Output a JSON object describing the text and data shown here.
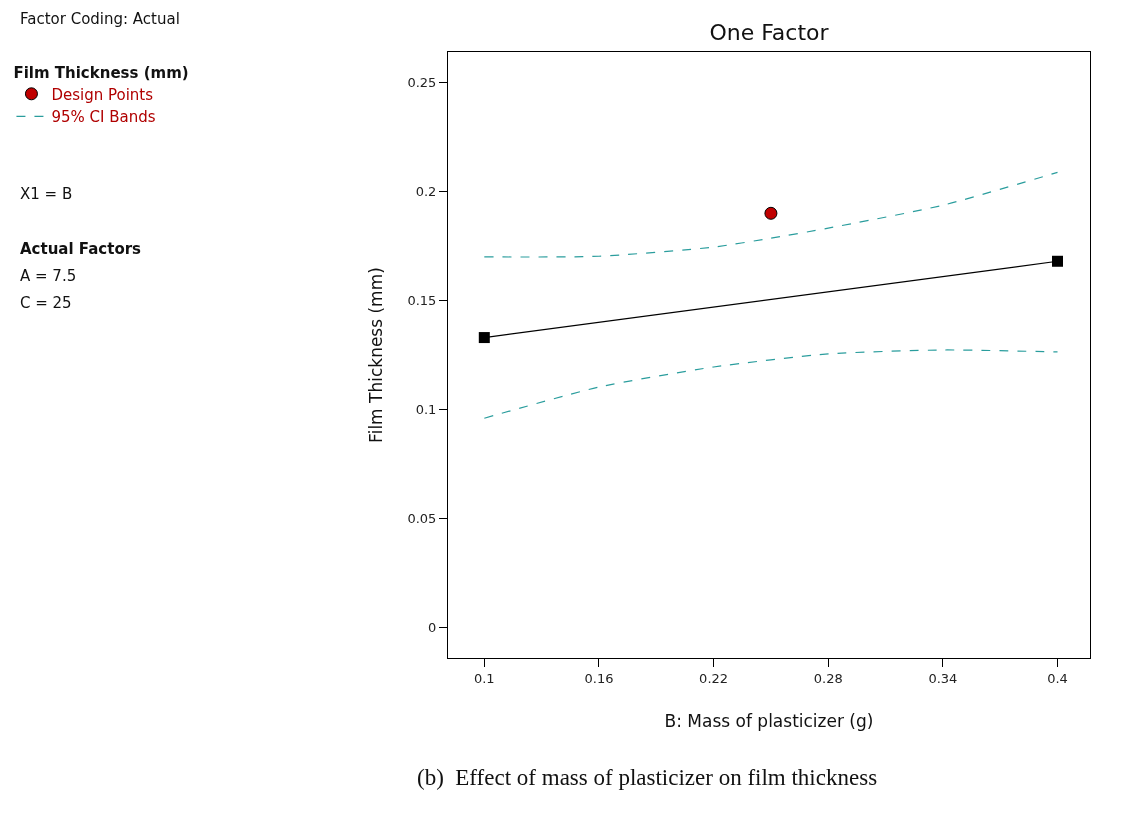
{
  "chart_data": {
    "type": "line",
    "title": "One Factor",
    "xlabel": "B: Mass of plasticizer (g)",
    "ylabel": "Film Thickness (mm)",
    "legend_title": "Film Thickness (mm)",
    "x": [
      0.1,
      0.4
    ],
    "series": [
      {
        "color": "#000000",
        "marker": "square",
        "line_style": "solid",
        "values": [
          0.133,
          0.168
        ]
      },
      {
        "type": "scatter",
        "name": "Design Points",
        "color": "#c00000",
        "marker": "circle",
        "x": [
          0.25
        ],
        "values": [
          0.19
        ]
      },
      {
        "type": "line",
        "name": "95% CI Bands",
        "color": "#2a9d9d",
        "marker": "none",
        "line_style": "dashed",
        "x": [
          0.1,
          0.16,
          0.22,
          0.25,
          0.28,
          0.34,
          0.4
        ],
        "values": [
          0.17,
          0.1703,
          0.1745,
          0.1786,
          0.1832,
          0.1937,
          0.2088
        ]
      },
      {
        "type": "line",
        "color": "#2a9d9d",
        "marker": "none",
        "line_style": "dashed",
        "x": [
          0.1,
          0.16,
          0.22,
          0.28,
          0.34,
          0.4
        ],
        "values": [
          0.096,
          0.1103,
          0.1195,
          0.1255,
          0.1273,
          0.1264
        ]
      }
    ],
    "xlim": [
      0.081,
      0.417
    ],
    "ylim": [
      -0.014,
      0.264
    ],
    "xticks": [
      0.1,
      0.16,
      0.22,
      0.28,
      0.34,
      0.4
    ],
    "yticks": [
      0,
      0.05,
      0.1,
      0.15,
      0.2,
      0.25
    ],
    "grid": false,
    "legend": "left",
    "annotations": [
      "Factor Coding: Actual",
      "X1 = B",
      "Actual Factors",
      "A = 7.5",
      "C = 25",
      "(b)  Effect of mass of plasticizer on film thickness"
    ]
  }
}
